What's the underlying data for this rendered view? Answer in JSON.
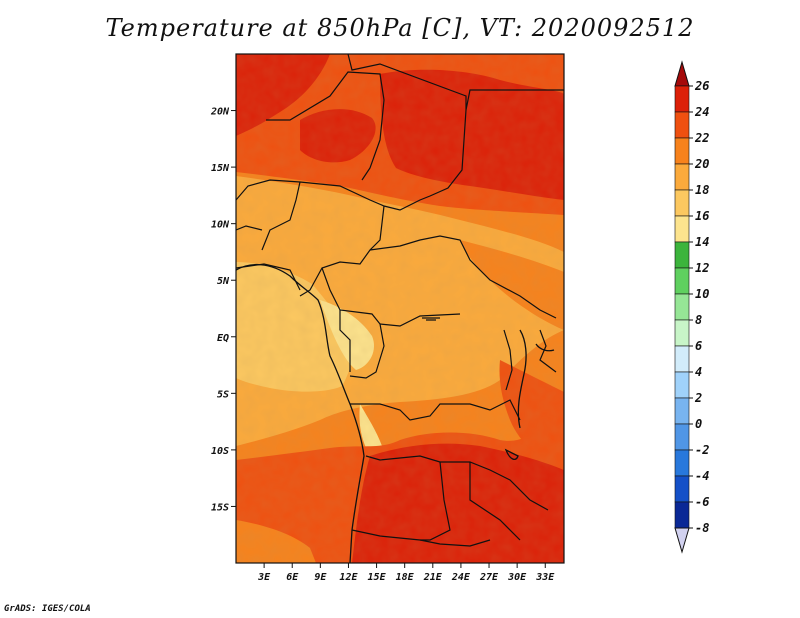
{
  "title": "Temperature at 850hPa [C], VT: 2020092512",
  "footer": "GrADS: IGES/COLA",
  "map": {
    "region": "Central Africa",
    "lon_range": [
      0,
      35
    ],
    "lat_range": [
      -20,
      25
    ],
    "lat_ticks": [
      {
        "value": 20,
        "label": "20N"
      },
      {
        "value": 15,
        "label": "15N"
      },
      {
        "value": 10,
        "label": "10N"
      },
      {
        "value": 5,
        "label": "5N"
      },
      {
        "value": 0,
        "label": "EQ"
      },
      {
        "value": -5,
        "label": "5S"
      },
      {
        "value": -10,
        "label": "10S"
      },
      {
        "value": -15,
        "label": "15S"
      }
    ],
    "lon_ticks": [
      {
        "value": 3,
        "label": "3E"
      },
      {
        "value": 6,
        "label": "6E"
      },
      {
        "value": 9,
        "label": "9E"
      },
      {
        "value": 12,
        "label": "12E"
      },
      {
        "value": 15,
        "label": "15E"
      },
      {
        "value": 18,
        "label": "18E"
      },
      {
        "value": 21,
        "label": "21E"
      },
      {
        "value": 24,
        "label": "24E"
      },
      {
        "value": 27,
        "label": "27E"
      },
      {
        "value": 30,
        "label": "30E"
      },
      {
        "value": 33,
        "label": "33E"
      }
    ]
  },
  "colorbar": {
    "levels": [
      {
        "label": "26",
        "color": "#a50a0a"
      },
      {
        "label": "24",
        "color": "#dc2008"
      },
      {
        "label": "22",
        "color": "#ef5010"
      },
      {
        "label": "20",
        "color": "#f7821c"
      },
      {
        "label": "18",
        "color": "#fbaa3c"
      },
      {
        "label": "16",
        "color": "#fcc860"
      },
      {
        "label": "14",
        "color": "#fde48e"
      },
      {
        "label": "12",
        "color": "#3cb43c"
      },
      {
        "label": "10",
        "color": "#5fd05f"
      },
      {
        "label": "8",
        "color": "#96e696"
      },
      {
        "label": "6",
        "color": "#c8f5c8"
      },
      {
        "label": "4",
        "color": "#d2ecfa"
      },
      {
        "label": "2",
        "color": "#a0d2fa"
      },
      {
        "label": "0",
        "color": "#78b4f0"
      },
      {
        "label": "-2",
        "color": "#5096e6"
      },
      {
        "label": "-4",
        "color": "#2878dc"
      },
      {
        "label": "-6",
        "color": "#1450c8"
      },
      {
        "label": "-8",
        "color": "#0a2896"
      }
    ],
    "top_arrow_color": "#a50a0a",
    "bottom_arrow_color": "#d2d2f0",
    "bottom_color": "#0a1464"
  }
}
